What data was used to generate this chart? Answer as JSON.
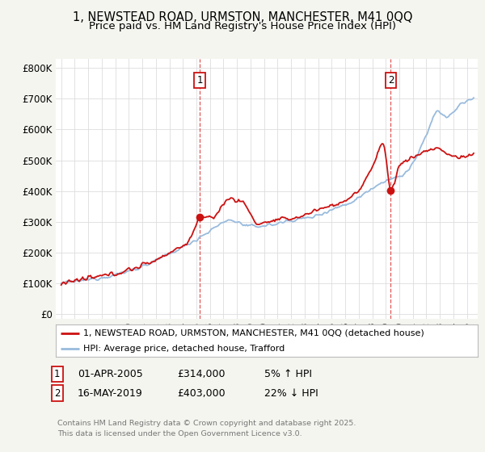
{
  "title1": "1, NEWSTEAD ROAD, URMSTON, MANCHESTER, M41 0QQ",
  "title2": "Price paid vs. HM Land Registry's House Price Index (HPI)",
  "yticks": [
    0,
    100000,
    200000,
    300000,
    400000,
    500000,
    600000,
    700000,
    800000
  ],
  "ytick_labels": [
    "£0",
    "£100K",
    "£200K",
    "£300K",
    "£400K",
    "£500K",
    "£600K",
    "£700K",
    "£800K"
  ],
  "ylim": [
    -15000,
    830000
  ],
  "xlim_left": 1994.6,
  "xlim_right": 2025.8,
  "sale1_date_num": 2005.25,
  "sale1_price": 314000,
  "sale2_date_num": 2019.37,
  "sale2_price": 403000,
  "line_prop_color": "#cc1111",
  "line_hpi_color": "#99bbdd",
  "vline_color": "#dd4444",
  "marker_color": "#cc1111",
  "legend1": "1, NEWSTEAD ROAD, URMSTON, MANCHESTER, M41 0QQ (detached house)",
  "legend2": "HPI: Average price, detached house, Trafford",
  "footer": "Contains HM Land Registry data © Crown copyright and database right 2025.\nThis data is licensed under the Open Government Licence v3.0.",
  "background_color": "#f5f5f0",
  "plot_bg_color": "#ffffff",
  "grid_color": "#dddddd"
}
